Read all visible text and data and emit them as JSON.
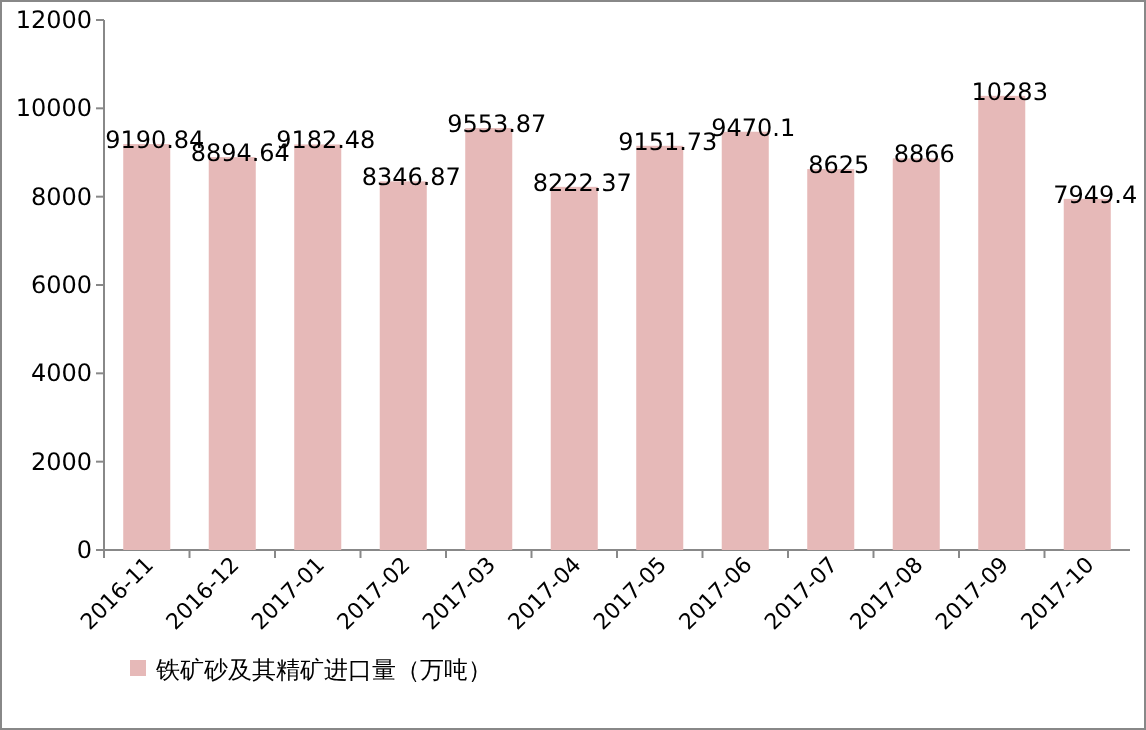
{
  "chart_data": {
    "type": "bar",
    "categories": [
      "2016-11",
      "2016-12",
      "2017-01",
      "2017-02",
      "2017-03",
      "2017-04",
      "2017-05",
      "2017-06",
      "2017-07",
      "2017-08",
      "2017-09",
      "2017-10"
    ],
    "series": [
      {
        "name": "铁矿砂及其精矿进口量（万吨）",
        "color": "#e6b9b8",
        "values": [
          9190.84,
          8894.64,
          9182.48,
          8346.87,
          9553.87,
          8222.37,
          9151.73,
          9470.1,
          8625,
          8866,
          10283,
          7949.4
        ]
      }
    ],
    "ylim": [
      0,
      12000
    ],
    "yticks": [
      0,
      2000,
      4000,
      6000,
      8000,
      10000,
      12000
    ],
    "data_labels": true,
    "legend": "bottom"
  }
}
